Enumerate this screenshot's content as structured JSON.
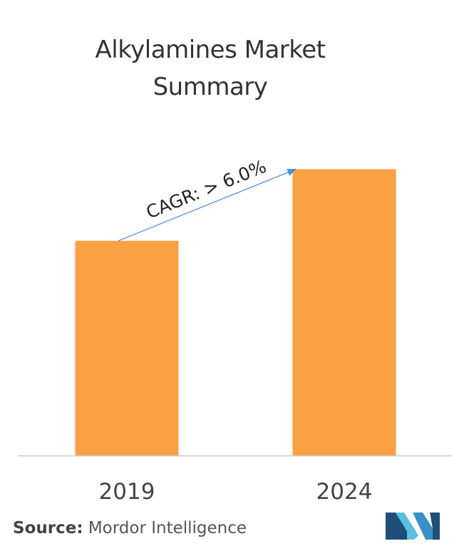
{
  "title_line1": "Alkylamines Market",
  "title_line2": "Summary",
  "chart_data": {
    "type": "bar",
    "categories": [
      "2019",
      "2024"
    ],
    "values": [
      60,
      80
    ],
    "title": "Alkylamines Market Summary",
    "xlabel": "",
    "ylabel": "",
    "ylim": [
      0,
      100
    ],
    "grid": false,
    "annotation": "CAGR: > 6.0%",
    "bar_color": "#FBA143",
    "arrow_color": "#4F8FD9"
  },
  "source_label": "Source:",
  "source_text": "Mordor Intelligence",
  "logo_colors": [
    "#1F4E79",
    "#5BC0DE"
  ]
}
